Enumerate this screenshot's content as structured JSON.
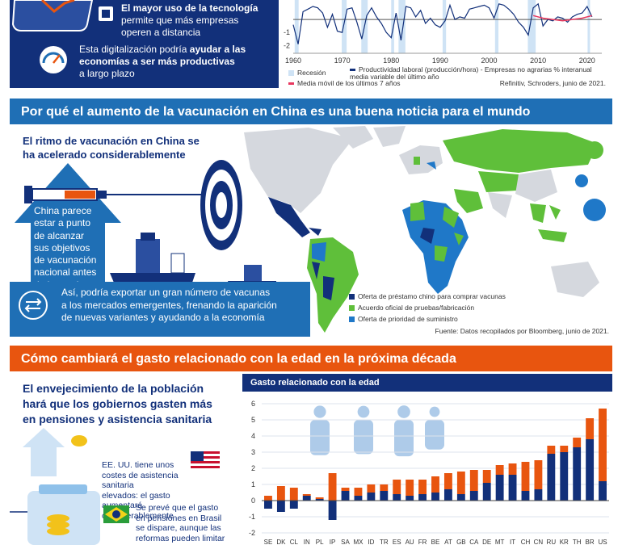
{
  "section1": {
    "point1": {
      "bold": "El mayor uso de la tecnología",
      "rest_line1": "permite que más empresas",
      "rest_line2": "operen a distancia"
    },
    "point2": {
      "line1": "Esta digitalización podría",
      "bold_a": "ayudar a las",
      "bold_b": "economías a ser más productivas",
      "line4": "a largo plazo"
    },
    "chart": {
      "y_ticks": [
        "-1",
        "-2"
      ],
      "x_ticks": [
        "1960",
        "1970",
        "1980",
        "1990",
        "2000",
        "2010",
        "2020"
      ],
      "legend": {
        "recession": "Recesión",
        "productivity": "Productividad laboral (producción/hora) - Empresas no agrarias % interanual media variable del último año",
        "vaccine": "Media móvil de los últimos 7 años"
      },
      "source": "Refinitiv, Schroders, junio de 2021."
    }
  },
  "section2": {
    "title": "Por qué el aumento de la vacunación en China es una buena noticia para el mundo",
    "subtitle_line1": "El ritmo de vacunación en China se",
    "subtitle_line2": "ha acelerado considerablemente",
    "arrow_text": [
      "China parece",
      "estar a punto",
      "de alcanzar",
      "sus objetivos",
      "de vacunación",
      "nacional antes",
      "de lo previsto"
    ],
    "export_text": [
      "Así, podría exportar un gran número de vacunas",
      "a los mercados emergentes, frenando la aparición",
      "de nuevas variantes y ayudando a la economía"
    ],
    "legend": [
      {
        "label": "Oferta de préstamo chino para comprar vacunas",
        "color": "#12307a"
      },
      {
        "label": "Acuerdo oficial de pruebas/fabricación",
        "color": "#5fbf3a"
      },
      {
        "label": "Oferta de prioridad de suministro",
        "color": "#1f78c8"
      }
    ],
    "source": "Fuente: Datos recopilados por Bloomberg, junio de 2021."
  },
  "section3": {
    "title": "Cómo cambiará el gasto relacionado con la edad en la próxima década",
    "subtitle": [
      "El envejecimiento de la población",
      "hará que los gobiernos gasten más",
      "en pensiones y asistencia sanitaria"
    ],
    "us_text": [
      "EE. UU. tiene unos",
      "costes de asistencia sanitaria",
      "elevados: el gasto aumentará",
      "considerablemente"
    ],
    "br_text": [
      "Se prevé que el gasto",
      "en pensiones en Brasil",
      "se dispare, aunque las",
      "reformas pueden limitar"
    ],
    "chart_title": "Gasto relacionado con la edad"
  },
  "colors": {
    "navy": "#12307a",
    "blue": "#1f6fb5",
    "orange": "#e8550f",
    "green": "#5fbf3a",
    "light_blue": "#cfe3f5"
  },
  "chart_data": [
    {
      "type": "line",
      "title": "",
      "x_ticks": [
        1960,
        1970,
        1980,
        1990,
        2000,
        2010,
        2020
      ],
      "y_ticks_visible": [
        -1,
        -2
      ],
      "xlim": [
        1960,
        2023
      ],
      "ylim": [
        -2.6,
        1.5
      ],
      "recessions": [
        [
          1960.3,
          1961.1
        ],
        [
          1969.9,
          1970.9
        ],
        [
          1973.9,
          1975.2
        ],
        [
          1980.0,
          1980.6
        ],
        [
          1981.5,
          1982.9
        ],
        [
          1990.5,
          1991.2
        ],
        [
          2001.2,
          2001.9
        ],
        [
          2007.9,
          2009.5
        ],
        [
          2020.1,
          2020.4
        ]
      ],
      "series": [
        {
          "name": "Productividad laboral (producción/hora) - Empresas no agrarias % interanual media variable del último año",
          "x": [
            1960,
            1961,
            1962,
            1963,
            1964,
            1965,
            1966,
            1967,
            1968,
            1969,
            1970,
            1971,
            1972,
            1973,
            1974,
            1975,
            1976,
            1977,
            1978,
            1979,
            1980,
            1981,
            1982,
            1983,
            1984,
            1985,
            1986,
            1987,
            1988,
            1989,
            1990,
            1991,
            1992,
            1993,
            1994,
            1995,
            1996,
            1997,
            1998,
            1999,
            2000,
            2001,
            2002,
            2003,
            2004,
            2005,
            2006,
            2007,
            2008,
            2009,
            2010,
            2011,
            2012,
            2013,
            2014,
            2015,
            2016,
            2017,
            2018,
            2019,
            2020,
            2021
          ],
          "y": [
            -0.4,
            -1.9,
            0.6,
            0.8,
            1.0,
            0.9,
            0.5,
            -0.6,
            0.4,
            -0.9,
            -1.0,
            0.8,
            0.9,
            -0.2,
            -1.5,
            0.3,
            0.9,
            0.2,
            -0.3,
            -1.0,
            -1.4,
            0.5,
            -1.6,
            1.0,
            0.9,
            0.2,
            0.7,
            -0.3,
            0.1,
            -0.4,
            -0.6,
            -0.1,
            1.1,
            0.0,
            0.2,
            0.1,
            0.8,
            0.9,
            1.0,
            1.1,
            0.9,
            0.1,
            1.2,
            1.1,
            0.8,
            0.4,
            -0.2,
            -0.6,
            -1.2,
            0.9,
            1.2,
            -0.5,
            0.0,
            -0.1,
            0.2,
            0.1,
            -0.2,
            0.2,
            0.4,
            0.5,
            1.0,
            0.2
          ]
        },
        {
          "name": "Media móvil de los últimos 7 años",
          "x": [
            2009,
            2011,
            2013,
            2015,
            2017,
            2019,
            2021
          ],
          "y": [
            0.3,
            0.1,
            0.0,
            -0.1,
            0.0,
            0.1,
            0.3
          ]
        }
      ]
    },
    {
      "type": "bar",
      "title": "Gasto relacionado con la edad",
      "categories": [
        "SE",
        "DK",
        "CL",
        "IN",
        "PL",
        "IP",
        "SA",
        "MX",
        "ID",
        "TR",
        "ES",
        "AU",
        "FR",
        "BE",
        "AT",
        "GB",
        "CA",
        "DE",
        "MT",
        "IT",
        "CH",
        "CN",
        "RU",
        "KR",
        "TH",
        "BR",
        "US"
      ],
      "ylim": [
        -2,
        6
      ],
      "y_ticks": [
        -2,
        -1,
        0,
        1,
        2,
        3,
        4,
        5,
        6
      ],
      "series": [
        {
          "name": "",
          "color": "#12307a",
          "values": [
            -0.5,
            -0.7,
            -0.5,
            0.3,
            0.1,
            -1.2,
            0.6,
            0.3,
            0.5,
            0.6,
            0.4,
            0.3,
            0.4,
            0.5,
            0.7,
            0.4,
            0.6,
            1.1,
            1.6,
            1.6,
            0.6,
            0.7,
            2.9,
            3.0,
            3.3,
            3.8,
            1.2
          ]
        },
        {
          "name": "",
          "color": "#e8550f",
          "values": [
            0.3,
            0.9,
            0.8,
            0.1,
            0.1,
            1.7,
            0.2,
            0.5,
            0.5,
            0.4,
            0.9,
            1.0,
            0.9,
            1.0,
            1.0,
            1.4,
            1.3,
            0.8,
            0.6,
            0.7,
            1.8,
            1.8,
            0.5,
            0.4,
            0.6,
            1.3,
            4.5
          ]
        }
      ]
    }
  ]
}
